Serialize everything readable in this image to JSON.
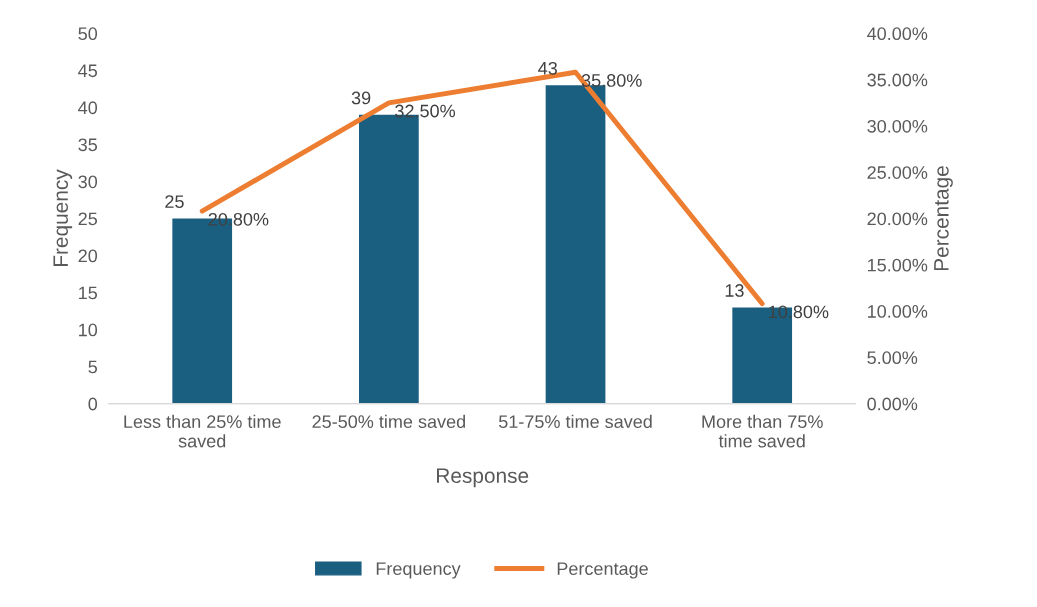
{
  "chart_data": {
    "type": "bar",
    "xlabel": "Response",
    "ylabel": "Frequency",
    "y2label": "Percentage",
    "categories": [
      "Less than 25% time\nsaved",
      "25-50% time saved",
      "51-75% time saved",
      "More than 75%\ntime saved"
    ],
    "series": [
      {
        "name": "Frequency",
        "color": "#1a5e80",
        "values": [
          25,
          39,
          43,
          13
        ],
        "value_labels": [
          "25",
          "39",
          "43",
          "13"
        ]
      },
      {
        "name": "Percentage",
        "type": "line",
        "axis": "y2",
        "color": "#ed7d31",
        "values": [
          20.8,
          32.5,
          35.8,
          10.8
        ],
        "value_labels": [
          "20.80%",
          "32.50%",
          "35.80%",
          "10.80%"
        ]
      }
    ],
    "ylim": [
      0,
      50
    ],
    "yticks": [
      0,
      5,
      10,
      15,
      20,
      25,
      30,
      35,
      40,
      45,
      50
    ],
    "y2lim": [
      0,
      40
    ],
    "y2ticks": [
      {
        "value": 0,
        "label": "0.00%"
      },
      {
        "value": 5,
        "label": "5.00%"
      },
      {
        "value": 10,
        "label": "10.00%"
      },
      {
        "value": 15,
        "label": "15.00%"
      },
      {
        "value": 20,
        "label": "20.00%"
      },
      {
        "value": 25,
        "label": "25.00%"
      },
      {
        "value": 30,
        "label": "30.00%"
      },
      {
        "value": 35,
        "label": "35.00%"
      },
      {
        "value": 40,
        "label": "40.00%"
      }
    ],
    "legend": "bottom",
    "grid": false,
    "marker": "none",
    "line_style": "solid"
  }
}
